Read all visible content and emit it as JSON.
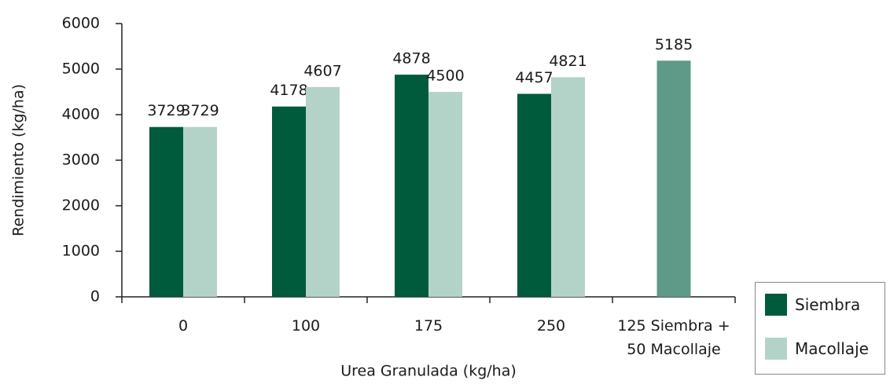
{
  "chart_data": {
    "type": "bar",
    "y_label": "Rendimiento (kg/ha)",
    "x_label": "Urea Granulada (kg/ha)",
    "categories": [
      "0",
      "100",
      "175",
      "250",
      "125 Siembra + 50 Macollaje"
    ],
    "series": [
      {
        "name": "Siembra",
        "color": "#005a3c",
        "values": [
          3729,
          4178,
          4878,
          4457,
          5185
        ],
        "bar_colors": [
          null,
          null,
          null,
          null,
          "#5f9a88"
        ]
      },
      {
        "name": "Macollaje",
        "color": "#b3d3c8",
        "values": [
          3729,
          4607,
          4500,
          4821,
          null
        ]
      }
    ],
    "ylim": [
      0,
      6000
    ],
    "yticks": [
      0,
      1000,
      2000,
      3000,
      4000,
      5000,
      6000
    ],
    "grid": false,
    "legend": "bottom-right"
  }
}
